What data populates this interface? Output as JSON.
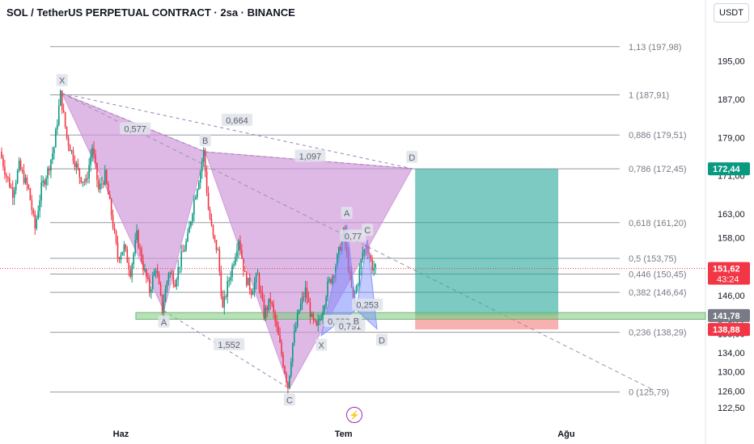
{
  "header": {
    "title": "SOL / TetherUS PERPETUAL CONTRACT · 2sa · BINANCE",
    "currency": "USDT"
  },
  "colors": {
    "up": "#089981",
    "down": "#f23645",
    "pattern_fill": "#ce93d8",
    "pattern2_fill": "#7b8cff",
    "profit_zone": "#26a69a",
    "loss_zone": "#ef5350",
    "zone_line": "#81c784",
    "fib_line": "#9598a1"
  },
  "chart_data": {
    "type": "candlestick",
    "y_axis": {
      "range": [
        120.0,
        203.0
      ],
      "tick_labels": [
        "195,00",
        "187,00",
        "179,00",
        "171,00",
        "163,00",
        "158,00",
        "151,00",
        "146,00",
        "141,00",
        "138,00",
        "134,00",
        "130,00",
        "126,00",
        "122,50"
      ],
      "tick_values": [
        195.0,
        187.0,
        179.0,
        171.0,
        163.0,
        158.0,
        151.0,
        146.0,
        141.0,
        138.0,
        134.0,
        130.0,
        126.0,
        122.5
      ]
    },
    "x_axis": {
      "labels": [
        "Haz",
        "Tem",
        "Ağu"
      ],
      "label_index": [
        75,
        215,
        355
      ]
    },
    "fib_levels": [
      {
        "ratio": "1,13",
        "price": 197.98,
        "label": "1,13 (197,98)"
      },
      {
        "ratio": "1",
        "price": 187.91,
        "label": "1 (187,91)"
      },
      {
        "ratio": "0,886",
        "price": 179.51,
        "label": "0,886 (179,51)"
      },
      {
        "ratio": "0,786",
        "price": 172.45,
        "label": "0,786 (172,45)"
      },
      {
        "ratio": "0,618",
        "price": 161.2,
        "label": "0,618 (161,20)"
      },
      {
        "ratio": "0,5",
        "price": 153.75,
        "label": "0,5 (153,75)"
      },
      {
        "ratio": "0,446",
        "price": 150.45,
        "label": "0,446 (150,45)"
      },
      {
        "ratio": "0,382",
        "price": 146.64,
        "label": "0,382 (146,64)"
      },
      {
        "ratio": "0,236",
        "price": 138.29,
        "label": "0,236 (138,29)"
      },
      {
        "ratio": "0",
        "price": 125.79,
        "label": "0 (125,79)"
      }
    ],
    "price_tags": [
      {
        "price": 172.44,
        "label": "172,44",
        "color": "#089981"
      },
      {
        "price": 151.62,
        "label": "151,62",
        "sublabel": "43:24",
        "color": "#f23645"
      },
      {
        "price": 141.78,
        "label": "141,78",
        "color": "#787b86"
      },
      {
        "price": 138.88,
        "label": "138,88",
        "color": "#f23645"
      }
    ],
    "current_price": 151.62,
    "support_zone": {
      "top": 142.4,
      "bottom": 141.0,
      "from_index": 90,
      "to_index": 465
    },
    "position": {
      "entry": 141.78,
      "target": 172.44,
      "stop": 138.88,
      "from_index": 260,
      "to_index": 350
    },
    "trendline": {
      "from": [
        38,
        188.2
      ],
      "to": [
        410,
        126.2
      ]
    },
    "pattern_main": {
      "points": {
        "X": [
          38,
          188.2
        ],
        "A": [
          102,
          142.8
        ],
        "B": [
          128,
          176.0
        ],
        "C": [
          181,
          126.5
        ],
        "D": [
          258,
          172.5
        ]
      },
      "ratios": [
        {
          "label": "0,577",
          "at": [
            84,
            180.8
          ]
        },
        {
          "label": "0,664",
          "at": [
            148,
            182.6
          ]
        },
        {
          "label": "1,097",
          "at": [
            194,
            175.1
          ]
        },
        {
          "label": "1,552",
          "at": [
            143,
            135.7
          ]
        }
      ]
    },
    "pattern_small": {
      "points": {
        "X": [
          201,
          137.6
        ],
        "A": [
          217,
          160.8
        ],
        "B": [
          223,
          143.0
        ],
        "C": [
          230,
          157.6
        ],
        "D": [
          236,
          139.0
        ]
      },
      "ratios": [
        {
          "label": "0,77",
          "at": [
            221,
            158.4
          ]
        },
        {
          "label": "0,662",
          "at": [
            212,
            140.6
          ]
        },
        {
          "label": "0,791",
          "at": [
            219,
            139.6
          ]
        },
        {
          "label": "0,253",
          "at": [
            230,
            144.0
          ]
        }
      ]
    },
    "candles": {
      "start_index": 0,
      "count": 236,
      "anchors": [
        [
          0,
          176.0
        ],
        [
          4,
          171.0
        ],
        [
          8,
          167.5
        ],
        [
          12,
          173.0
        ],
        [
          18,
          168.0
        ],
        [
          22,
          160.0
        ],
        [
          26,
          168.5
        ],
        [
          30,
          172.0
        ],
        [
          34,
          177.0
        ],
        [
          38,
          188.0
        ],
        [
          42,
          179.0
        ],
        [
          46,
          175.0
        ],
        [
          50,
          171.0
        ],
        [
          54,
          169.5
        ],
        [
          58,
          177.0
        ],
        [
          62,
          168.0
        ],
        [
          66,
          171.0
        ],
        [
          70,
          163.0
        ],
        [
          74,
          154.0
        ],
        [
          78,
          156.0
        ],
        [
          82,
          151.0
        ],
        [
          86,
          158.5
        ],
        [
          90,
          152.0
        ],
        [
          94,
          147.0
        ],
        [
          98,
          152.0
        ],
        [
          102,
          143.0
        ],
        [
          106,
          151.0
        ],
        [
          110,
          149.0
        ],
        [
          114,
          154.0
        ],
        [
          118,
          158.0
        ],
        [
          122,
          166.0
        ],
        [
          126,
          172.0
        ],
        [
          128,
          176.0
        ],
        [
          131,
          164.0
        ],
        [
          134,
          158.0
        ],
        [
          137,
          155.0
        ],
        [
          140,
          143.0
        ],
        [
          143,
          148.0
        ],
        [
          146,
          152.0
        ],
        [
          150,
          158.0
        ],
        [
          154,
          150.0
        ],
        [
          158,
          147.0
        ],
        [
          162,
          150.0
        ],
        [
          166,
          142.0
        ],
        [
          170,
          145.0
        ],
        [
          174,
          139.0
        ],
        [
          178,
          132.0
        ],
        [
          181,
          127.0
        ],
        [
          184,
          136.0
        ],
        [
          188,
          143.0
        ],
        [
          192,
          147.0
        ],
        [
          196,
          141.0
        ],
        [
          199,
          139.0
        ],
        [
          202,
          142.0
        ],
        [
          206,
          148.0
        ],
        [
          210,
          151.0
        ],
        [
          213,
          155.0
        ],
        [
          216,
          159.0
        ],
        [
          219,
          152.0
        ],
        [
          222,
          145.0
        ],
        [
          225,
          149.0
        ],
        [
          228,
          155.0
        ],
        [
          231,
          156.0
        ],
        [
          234,
          152.0
        ],
        [
          236,
          151.6
        ]
      ]
    }
  }
}
